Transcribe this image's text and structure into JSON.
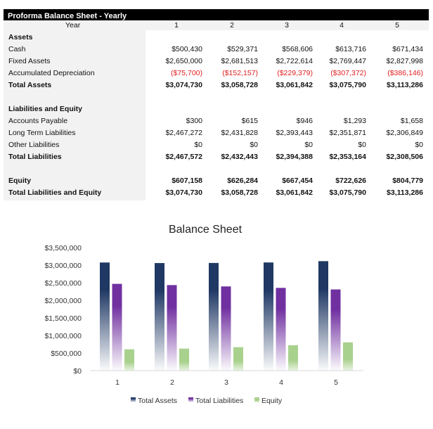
{
  "sheet": {
    "title": "Proforma Balance Sheet - Yearly",
    "year_label": "Year",
    "years": [
      "1",
      "2",
      "3",
      "4",
      "5"
    ],
    "rows": [
      {
        "label": "Assets",
        "bold": true,
        "values": []
      },
      {
        "label": "Cash",
        "values": [
          "$500,430",
          "$529,371",
          "$568,606",
          "$613,716",
          "$671,434"
        ]
      },
      {
        "label": "Fixed Assets",
        "values": [
          "$2,650,000",
          "$2,681,513",
          "$2,722,614",
          "$2,769,447",
          "$2,827,998"
        ]
      },
      {
        "label": "Accumulated Depreciation",
        "red": true,
        "values": [
          "($75,700)",
          "($152,157)",
          "($229,379)",
          "($307,372)",
          "($386,146)"
        ]
      },
      {
        "label": "Total Assets",
        "bold": true,
        "values": [
          "$3,074,730",
          "$3,058,728",
          "$3,061,842",
          "$3,075,790",
          "$3,113,286"
        ]
      },
      {
        "label": "",
        "values": []
      },
      {
        "label": "Liabilities and Equity",
        "bold": true,
        "values": []
      },
      {
        "label": "Accounts Payable",
        "values": [
          "$300",
          "$615",
          "$946",
          "$1,293",
          "$1,658"
        ]
      },
      {
        "label": "Long Term Liabilities",
        "values": [
          "$2,467,272",
          "$2,431,828",
          "$2,393,443",
          "$2,351,871",
          "$2,306,849"
        ]
      },
      {
        "label": "Other Liabilities",
        "values": [
          "$0",
          "$0",
          "$0",
          "$0",
          "$0"
        ]
      },
      {
        "label": "Total Liabilities",
        "bold": true,
        "values": [
          "$2,467,572",
          "$2,432,443",
          "$2,394,388",
          "$2,353,164",
          "$2,308,506"
        ]
      },
      {
        "label": "",
        "values": []
      },
      {
        "label": "Equity",
        "bold": true,
        "values": [
          "$607,158",
          "$626,284",
          "$667,454",
          "$722,626",
          "$804,779"
        ]
      },
      {
        "label": "Total Liabilities and Equity",
        "bold": true,
        "values": [
          "$3,074,730",
          "$3,058,728",
          "$3,061,842",
          "$3,075,790",
          "$3,113,286"
        ]
      }
    ]
  },
  "chart_data": {
    "type": "bar",
    "title": "Balance Sheet",
    "categories": [
      "1",
      "2",
      "3",
      "4",
      "5"
    ],
    "series": [
      {
        "name": "Total Assets",
        "color": "#1f3864",
        "values": [
          3074730,
          3058728,
          3061842,
          3075790,
          3113286
        ]
      },
      {
        "name": "Total Liabilities",
        "color": "#7030a0",
        "values": [
          2467572,
          2432443,
          2394388,
          2353164,
          2308506
        ]
      },
      {
        "name": "Equity",
        "color": "#a9d18e",
        "values": [
          607158,
          626284,
          667454,
          722626,
          804779
        ]
      }
    ],
    "ylim": [
      0,
      3500000
    ],
    "yticks": [
      "$0",
      "$500,000",
      "$1,000,000",
      "$1,500,000",
      "$2,000,000",
      "$2,500,000",
      "$3,000,000",
      "$3,500,000"
    ],
    "grid": false,
    "legend": "bottom"
  }
}
